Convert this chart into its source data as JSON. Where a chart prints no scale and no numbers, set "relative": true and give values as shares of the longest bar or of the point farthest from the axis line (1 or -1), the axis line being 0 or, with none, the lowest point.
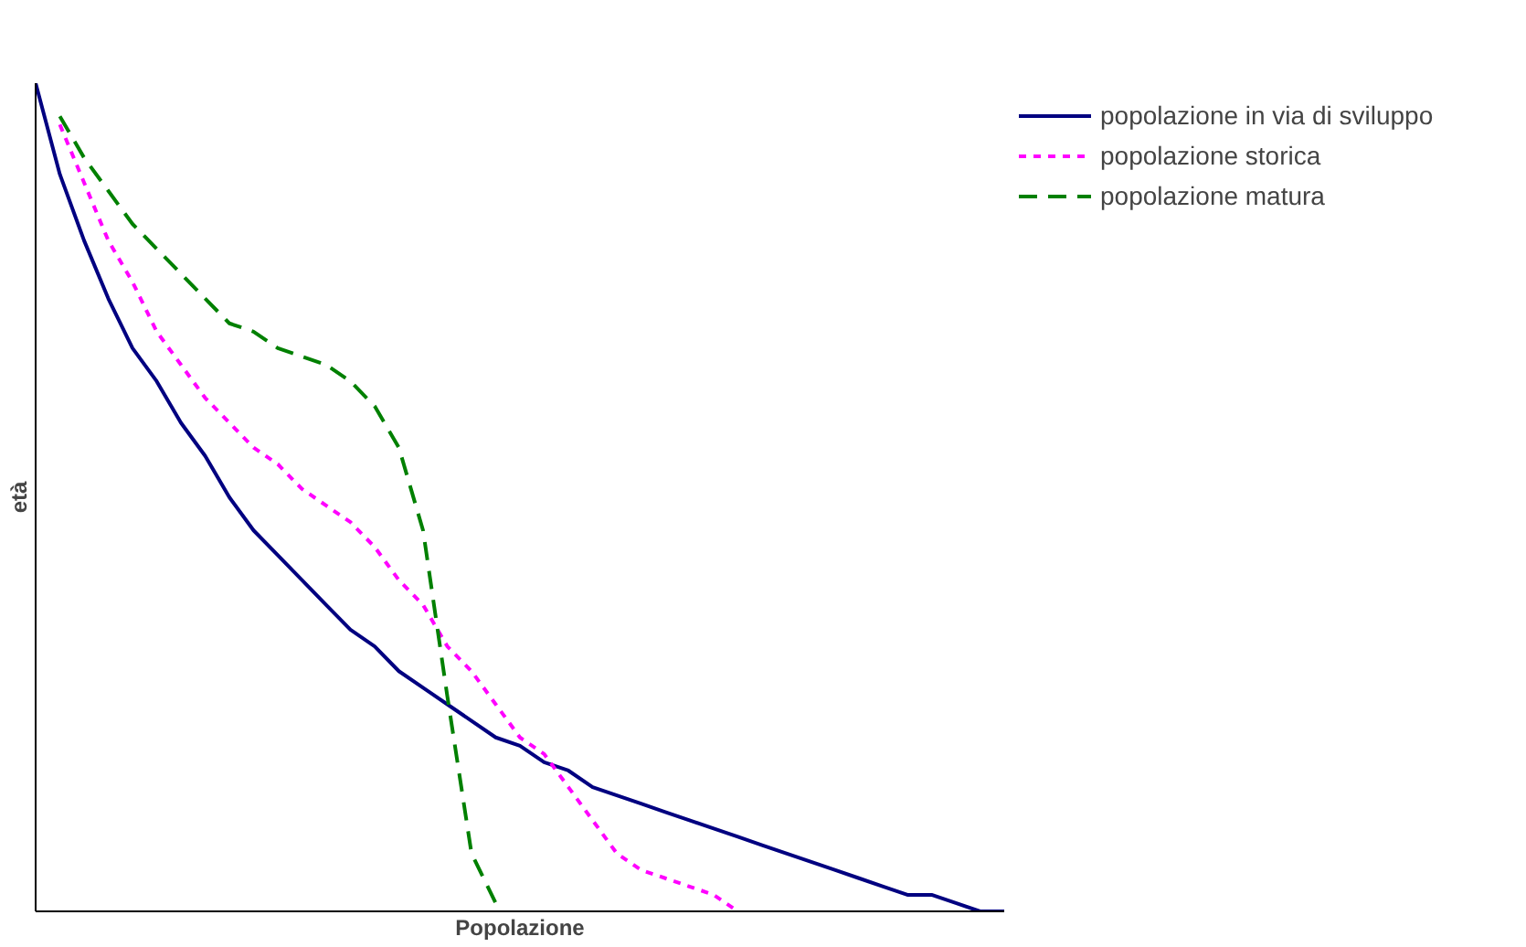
{
  "chart_data": {
    "type": "line",
    "xlabel": "Popolazione",
    "ylabel": "età",
    "relative": true,
    "legend": "top right",
    "marker": "none",
    "categories": [
      null,
      null,
      null,
      null,
      null,
      null,
      null,
      null,
      null,
      null,
      null,
      null,
      null,
      null,
      null,
      null,
      null,
      null,
      null,
      null,
      null,
      null,
      null,
      null,
      null,
      null,
      null,
      null,
      null,
      null,
      null,
      null,
      null,
      null,
      null,
      null,
      null,
      null,
      null,
      null,
      null
    ],
    "series": [
      {
        "name": "popolazione in via di sviluppo",
        "color": "#000080",
        "line_style": "solid",
        "values": [
          1.0,
          0.89,
          0.81,
          0.74,
          0.68,
          0.64,
          0.59,
          0.55,
          0.5,
          0.46,
          0.43,
          0.4,
          0.37,
          0.34,
          0.32,
          0.29,
          0.27,
          0.25,
          0.23,
          0.21,
          0.2,
          0.18,
          0.17,
          0.15,
          0.14,
          0.13,
          0.12,
          0.11,
          0.1,
          0.09,
          0.08,
          0.07,
          0.06,
          0.05,
          0.04,
          0.03,
          0.02,
          0.02,
          0.01,
          0.0,
          0.0
        ]
      },
      {
        "name": "popolazione storica",
        "color": "#ff00ff",
        "line_style": "dotted",
        "values": [
          null,
          0.95,
          0.88,
          0.81,
          0.76,
          0.7,
          0.66,
          0.62,
          0.59,
          0.56,
          0.54,
          0.51,
          0.49,
          0.47,
          0.44,
          0.4,
          0.37,
          0.32,
          0.29,
          0.25,
          0.21,
          0.19,
          0.15,
          0.11,
          0.07,
          0.05,
          0.04,
          0.03,
          0.02,
          0.0,
          null,
          null,
          null,
          null,
          null,
          null,
          null,
          null,
          null,
          null,
          null
        ]
      },
      {
        "name": "popolazione matura",
        "color": "#008000",
        "line_style": "dashed",
        "values": [
          null,
          0.96,
          0.91,
          0.87,
          0.83,
          0.8,
          0.77,
          0.74,
          0.71,
          0.7,
          0.68,
          0.67,
          0.66,
          0.64,
          0.61,
          0.56,
          0.46,
          0.26,
          0.07,
          0.01,
          null,
          null,
          null,
          null,
          null,
          null,
          null,
          null,
          null,
          null,
          null,
          null,
          null,
          null,
          null,
          null,
          null,
          null,
          null,
          null,
          null
        ]
      }
    ]
  }
}
